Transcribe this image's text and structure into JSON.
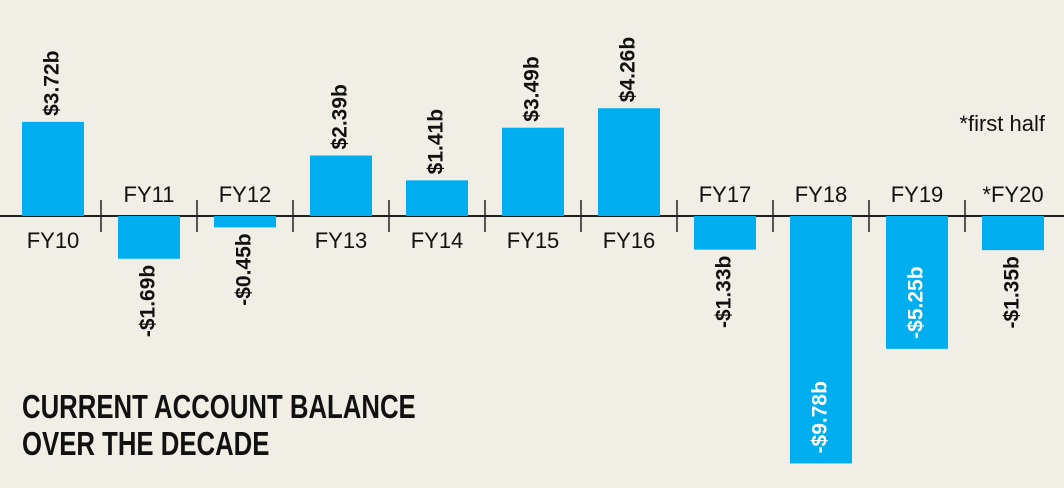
{
  "chart_data": {
    "type": "bar",
    "title": "CURRENT ACCOUNT BALANCE OVER THE DECADE",
    "annotation": "*first half",
    "categories": [
      "FY10",
      "FY11",
      "FY12",
      "FY13",
      "FY14",
      "FY15",
      "FY16",
      "FY17",
      "FY18",
      "FY19",
      "*FY20"
    ],
    "values": [
      3.72,
      -1.69,
      -0.45,
      2.39,
      1.41,
      3.49,
      4.26,
      -1.33,
      -9.78,
      -5.25,
      -1.35
    ],
    "value_labels": [
      "$3.72b",
      "-$1.69b",
      "-$0.45b",
      "$2.39b",
      "$1.41b",
      "$3.49b",
      "$4.26b",
      "-$1.33b",
      "-$9.78b",
      "-$5.25b",
      "-$1.35b"
    ],
    "color": "#00aeef"
  }
}
